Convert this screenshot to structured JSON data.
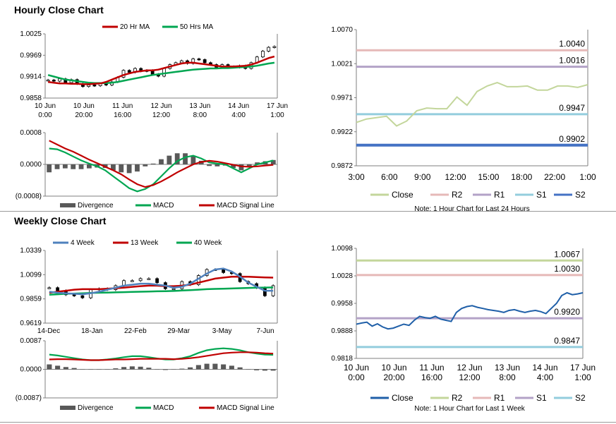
{
  "titles": {
    "hourly": "Hourly Close Chart",
    "weekly": "Weekly Close Chart"
  },
  "colors": {
    "ma_short": "#c00000",
    "ma_long": "#00a651",
    "week4": "#4f81bd",
    "close_light": "#c3d69b",
    "close_blue": "#1f5fa8",
    "r2": "#e6b9b8",
    "r1": "#b3a2c7",
    "s1": "#93cddd",
    "s2": "#4472c4",
    "r2_week": "#c3d69b",
    "r1_week": "#e6b9b8",
    "s1_week": "#b3a2c7",
    "s2_week": "#93cddd",
    "bar_gray": "#595959"
  },
  "chart_data": [
    {
      "id": "hourly_price",
      "type": "candlestick",
      "legend": [
        "20 Hr MA",
        "50 Hrs MA"
      ],
      "ylim": [
        0.9858,
        1.0025
      ],
      "yticks": [
        "1.0025",
        "0.9969",
        "0.9914",
        "0.9858"
      ],
      "xticks": [
        [
          "10 Jun",
          "0:00"
        ],
        [
          "10 Jun",
          "20:00"
        ],
        [
          "11 Jun",
          "16:00"
        ],
        [
          "12 Jun",
          "12:00"
        ],
        [
          "13 Jun",
          "8:00"
        ],
        [
          "14 Jun",
          "4:00"
        ],
        [
          "17 Jun",
          "1:00"
        ]
      ],
      "close": [
        0.9905,
        0.9902,
        0.9908,
        0.9898,
        0.9906,
        0.9895,
        0.9888,
        0.9892,
        0.989,
        0.9896,
        0.9892,
        0.99,
        0.9912,
        0.993,
        0.9925,
        0.9935,
        0.9928,
        0.993,
        0.992,
        0.9915,
        0.9935,
        0.9945,
        0.995,
        0.9955,
        0.9948,
        0.996,
        0.9958,
        0.995,
        0.9945,
        0.9938,
        0.9945,
        0.994,
        0.9938,
        0.9942,
        0.9935,
        0.995,
        0.9965,
        0.998,
        0.999,
        0.9992
      ],
      "ma20": [
        0.99,
        0.9898,
        0.9896,
        0.9896,
        0.9895,
        0.9895,
        0.9894,
        0.9894,
        0.9895,
        0.9896,
        0.99,
        0.9906,
        0.9912,
        0.9918,
        0.9922,
        0.9926,
        0.9928,
        0.993,
        0.993,
        0.9932,
        0.9936,
        0.994,
        0.9944,
        0.9948,
        0.995,
        0.995,
        0.9948,
        0.9946,
        0.9944,
        0.9942,
        0.994,
        0.994,
        0.994,
        0.9941,
        0.9942,
        0.9945,
        0.995,
        0.9956,
        0.9962,
        0.9966
      ],
      "ma50": [
        0.9918,
        0.9914,
        0.991,
        0.9906,
        0.9904,
        0.9902,
        0.99,
        0.9898,
        0.9897,
        0.9897,
        0.9897,
        0.9898,
        0.99,
        0.9903,
        0.9906,
        0.9909,
        0.9912,
        0.9915,
        0.9918,
        0.992,
        0.9922,
        0.9924,
        0.9926,
        0.9928,
        0.993,
        0.9932,
        0.9933,
        0.9934,
        0.9935,
        0.9935,
        0.9936,
        0.9936,
        0.9937,
        0.9938,
        0.9939,
        0.994,
        0.9942,
        0.9945,
        0.9948,
        0.995
      ]
    },
    {
      "id": "hourly_macd",
      "type": "macd",
      "ylim": [
        -0.0008,
        0.0008
      ],
      "yticks": [
        "0.0008",
        "0.0000",
        "(0.0008)"
      ],
      "legend": [
        "Divergence",
        "MACD",
        "MACD Signal Line"
      ],
      "macd": [
        0.0004,
        0.00038,
        0.0003,
        0.0002,
        0.0001,
        2e-05,
        -5e-05,
        -0.00015,
        -0.0003,
        -0.00045,
        -0.0006,
        -0.00068,
        -0.00062,
        -0.0005,
        -0.0003,
        -0.0001,
        8e-05,
        0.00018,
        0.00022,
        0.00015,
        5e-05,
        2e-05,
        0.0,
        -0.0001,
        -0.0002,
        -0.0001,
        0.0,
        5e-05,
        0.0001
      ],
      "signal": [
        0.0006,
        0.0005,
        0.0004,
        0.00032,
        0.00022,
        0.00012,
        3e-05,
        -6e-05,
        -0.00015,
        -0.00025,
        -0.00038,
        -0.0005,
        -0.00057,
        -0.00052,
        -0.00043,
        -0.00032,
        -0.0002,
        -0.0001,
        0.0,
        6e-05,
        9e-05,
        7e-05,
        3e-05,
        -1e-05,
        -5e-05,
        -6e-05,
        -5e-05,
        -3e-05,
        -1e-05
      ],
      "divergence": [
        -0.0002,
        -0.00012,
        -0.0001,
        -0.00012,
        -0.00012,
        -0.0001,
        -8e-05,
        -9e-05,
        -0.00015,
        -0.0002,
        -0.00022,
        -0.00018,
        -5e-05,
        2e-05,
        0.00013,
        0.00022,
        0.00028,
        0.00028,
        0.00022,
        9e-05,
        -4e-05,
        -5e-05,
        -3e-05,
        -9e-05,
        -0.00015,
        -4e-05,
        5e-05,
        8e-05,
        0.00011
      ]
    },
    {
      "id": "hourly_24h",
      "type": "line",
      "ylim": [
        0.9872,
        1.007
      ],
      "yticks": [
        "1.0070",
        "1.0021",
        "0.9971",
        "0.9922",
        "0.9872"
      ],
      "xticks": [
        "3:00",
        "6:00",
        "9:00",
        "12:00",
        "15:00",
        "18:00",
        "22:00",
        "1:00"
      ],
      "close": [
        0.9935,
        0.994,
        0.9942,
        0.9944,
        0.993,
        0.9937,
        0.9952,
        0.9956,
        0.9955,
        0.9955,
        0.9972,
        0.996,
        0.998,
        0.9988,
        0.9993,
        0.9987,
        0.9987,
        0.9988,
        0.9982,
        0.9982,
        0.9988,
        0.9988,
        0.9986,
        0.999
      ],
      "levels": [
        {
          "name": "R2",
          "value": 1.004,
          "label": "1.0040"
        },
        {
          "name": "R1",
          "value": 1.0016,
          "label": "1.0016"
        },
        {
          "name": "S1",
          "value": 0.9947,
          "label": "0.9947"
        },
        {
          "name": "S2",
          "value": 0.9902,
          "label": "0.9902"
        }
      ],
      "legend": [
        "Close",
        "R2",
        "R1",
        "S1",
        "S2"
      ],
      "note": "Note: 1 Hour Chart for Last 24 Hours"
    },
    {
      "id": "weekly_price",
      "type": "candlestick",
      "legend": [
        "4 Week",
        "13 Week",
        "40 Week"
      ],
      "ylim": [
        0.9619,
        1.0339
      ],
      "yticks": [
        "1.0339",
        "1.0099",
        "0.9859",
        "0.9619"
      ],
      "xticks": [
        "14-Dec",
        "18-Jan",
        "22-Feb",
        "29-Mar",
        "3-May",
        "7-Jun"
      ],
      "close": [
        0.997,
        0.994,
        0.99,
        0.989,
        0.987,
        0.995,
        0.996,
        0.995,
        0.999,
        1.004,
        1.004,
        1.006,
        1.006,
        1.002,
        0.996,
        0.996,
        1.003,
        1.0,
        1.009,
        1.015,
        1.015,
        1.012,
        1.011,
        1.003,
        1.001,
        0.997,
        0.989,
        0.999
      ],
      "week4": [
        0.993,
        0.992,
        0.9915,
        0.991,
        0.9905,
        0.9915,
        0.993,
        0.995,
        0.997,
        0.999,
        1.0,
        1.001,
        1.001,
        1.0,
        0.999,
        0.997,
        0.998,
        1.001,
        1.006,
        1.011,
        1.015,
        1.016,
        1.013,
        1.008,
        1.002,
        0.998,
        0.994,
        0.994
      ],
      "week13": [
        0.992,
        0.993,
        0.994,
        0.995,
        0.9955,
        0.9955,
        0.9955,
        0.996,
        0.9965,
        0.997,
        0.9978,
        0.9985,
        0.999,
        0.999,
        0.9985,
        0.9985,
        0.999,
        1.0,
        1.002,
        1.004,
        1.006,
        1.007,
        1.0078,
        1.008,
        1.0078,
        1.0075,
        1.0072,
        1.007
      ],
      "week40": [
        0.99,
        0.9905,
        0.991,
        0.9912,
        0.9915,
        0.9918,
        0.992,
        0.9922,
        0.9924,
        0.9926,
        0.9928,
        0.993,
        0.9932,
        0.9934,
        0.9936,
        0.9938,
        0.9942,
        0.9946,
        0.995,
        0.9955,
        0.9958,
        0.996,
        0.9962,
        0.9965,
        0.9968,
        0.997,
        0.9971,
        0.9972
      ]
    },
    {
      "id": "weekly_macd",
      "type": "macd",
      "ylim": [
        -0.0087,
        0.0087
      ],
      "yticks": [
        "0.0087",
        "0.0000",
        "(0.0087)"
      ],
      "legend": [
        "Divergence",
        "MACD",
        "MACD Signal Line"
      ],
      "macd": [
        0.0045,
        0.0042,
        0.0038,
        0.0034,
        0.003,
        0.0028,
        0.0028,
        0.003,
        0.0033,
        0.0037,
        0.004,
        0.004,
        0.0037,
        0.0033,
        0.003,
        0.003,
        0.0034,
        0.004,
        0.005,
        0.0058,
        0.0062,
        0.0064,
        0.0062,
        0.0058,
        0.0052,
        0.0048,
        0.0045,
        0.0044
      ],
      "signal": [
        0.003,
        0.0031,
        0.0031,
        0.003,
        0.0029,
        0.0028,
        0.0028,
        0.0029,
        0.003,
        0.003,
        0.0031,
        0.0032,
        0.0032,
        0.0032,
        0.0032,
        0.0031,
        0.0032,
        0.0034,
        0.0037,
        0.0041,
        0.0045,
        0.0049,
        0.0051,
        0.0052,
        0.0052,
        0.0051,
        0.0049,
        0.0048
      ],
      "divergence": [
        0.0015,
        0.0011,
        0.0007,
        0.0004,
        0.0001,
        0.0,
        0.0,
        0.0001,
        0.0003,
        0.0007,
        0.0009,
        0.0008,
        0.0005,
        0.0001,
        -0.0002,
        -0.0001,
        0.0002,
        0.0006,
        0.0013,
        0.0017,
        0.0017,
        0.0015,
        0.0011,
        0.0006,
        0.0,
        -0.0003,
        -0.0004,
        -0.0004
      ]
    },
    {
      "id": "weekly_hourly",
      "type": "line",
      "ylim": [
        0.9818,
        1.0098
      ],
      "yticks": [
        "1.0098",
        "1.0028",
        "0.9958",
        "0.9888",
        "0.9818"
      ],
      "xticks": [
        [
          "10 Jun",
          "0:00"
        ],
        [
          "10 Jun",
          "20:00"
        ],
        [
          "11 Jun",
          "16:00"
        ],
        [
          "12 Jun",
          "12:00"
        ],
        [
          "13 Jun",
          "8:00"
        ],
        [
          "14 Jun",
          "4:00"
        ],
        [
          "17 Jun",
          "1:00"
        ]
      ],
      "close": [
        0.9905,
        0.9908,
        0.991,
        0.99,
        0.9906,
        0.9898,
        0.9893,
        0.9895,
        0.99,
        0.9905,
        0.9902,
        0.9915,
        0.9925,
        0.9922,
        0.992,
        0.9925,
        0.9918,
        0.9915,
        0.9912,
        0.9935,
        0.9945,
        0.995,
        0.9952,
        0.9948,
        0.9945,
        0.9942,
        0.994,
        0.9938,
        0.9935,
        0.994,
        0.9942,
        0.9938,
        0.9935,
        0.9938,
        0.994,
        0.9937,
        0.9932,
        0.9945,
        0.9958,
        0.9978,
        0.9985,
        0.998,
        0.9982,
        0.9985
      ],
      "levels": [
        {
          "name": "R2",
          "value": 1.0067,
          "label": "1.0067"
        },
        {
          "name": "R1",
          "value": 1.003,
          "label": "1.0030"
        },
        {
          "name": "S1",
          "value": 0.992,
          "label": "0.9920"
        },
        {
          "name": "S2",
          "value": 0.9847,
          "label": "0.9847"
        }
      ],
      "legend": [
        "Close",
        "R2",
        "R1",
        "S1",
        "S2"
      ],
      "note": "Note: 1 Hour Chart for Last 1 Week"
    }
  ]
}
